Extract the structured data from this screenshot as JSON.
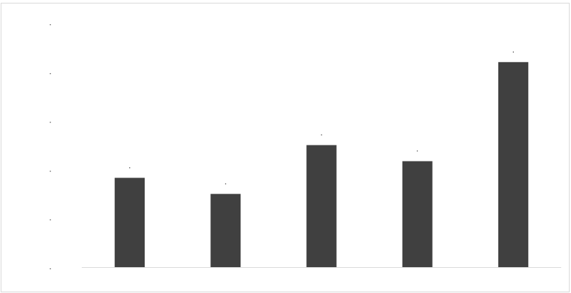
{
  "chart_data": {
    "type": "bar",
    "categories": [
      "",
      "",
      "",
      "",
      ""
    ],
    "values": [
      1.83,
      1.5,
      2.5,
      2.17,
      4.2
    ],
    "data_labels": [
      ".",
      ".",
      ".",
      ".",
      "."
    ],
    "ylim": [
      0,
      5
    ],
    "y_ticks": [
      0,
      1,
      2,
      3,
      4,
      5
    ],
    "y_tick_labels": [
      ".",
      ".",
      ".",
      ".",
      ".",
      "."
    ],
    "title": "",
    "xlabel": "",
    "ylabel": "",
    "grid": false,
    "legend": "none",
    "colors": {
      "bar": "#404040",
      "axis": "#d9d9d9",
      "frame": "#d9d9d9",
      "text": "#000000"
    }
  }
}
